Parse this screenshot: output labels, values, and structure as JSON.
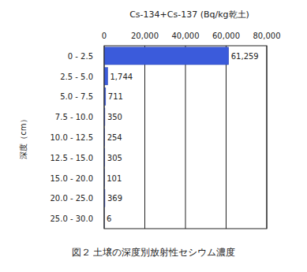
{
  "chart_data": {
    "type": "bar",
    "orientation": "horizontal",
    "title": "図２ 土壌の深度別放射性セシウム濃度",
    "xlabel": "Cs-134+Cs-137 (Bq/kg乾土)",
    "ylabel": "深度（cm）",
    "categories": [
      "0 - 2.5",
      "2.5 - 5.0",
      "5.0 - 7.5",
      "7.5 - 10.0",
      "10.0 - 12.5",
      "12.5 - 15.0",
      "15.0 - 20.0",
      "20.0 - 25.0",
      "25.0 - 30.0"
    ],
    "values": [
      61259,
      1744,
      711,
      350,
      254,
      305,
      101,
      369,
      6
    ],
    "value_labels": [
      "61,259",
      "1,744",
      "711",
      "350",
      "254",
      "305",
      "101",
      "369",
      "6"
    ],
    "color": "#3b5bdb",
    "xlim": [
      0,
      80000
    ],
    "xticks": [
      0,
      {
        "value": 20000,
        "label": "20,000"
      },
      {
        "value": 40000,
        "label": "40,000"
      },
      {
        "value": 60000,
        "label": "60,000"
      },
      {
        "value": 80000,
        "label": "80,000"
      }
    ],
    "grid": true,
    "data_labels": true
  }
}
